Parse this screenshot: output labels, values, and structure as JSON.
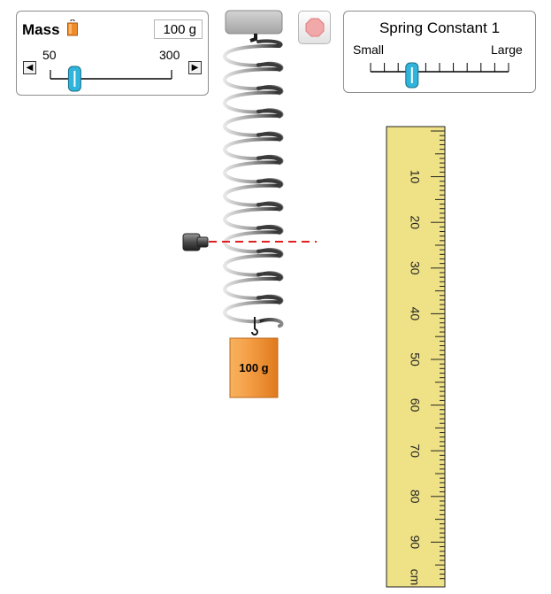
{
  "mass_panel": {
    "title": "Mass",
    "icon": "mass-weight-icon",
    "value": "100 g",
    "min_label": "50",
    "max_label": "300",
    "min": 50,
    "max": 300,
    "current": 100,
    "decrement_icon": "triangle-left-icon",
    "increment_icon": "triangle-right-icon",
    "decrement_glyph": "◀",
    "increment_glyph": "▶"
  },
  "spring_panel": {
    "title": "Spring Constant 1",
    "small_label": "Small",
    "large_label": "Large",
    "level": 0.3
  },
  "stop_button": {
    "icon": "stop-octagon-icon",
    "color": "#f0a8a8"
  },
  "hanging_mass": {
    "label": "100 g",
    "color": "#f08b2c"
  },
  "ruler": {
    "labels": [
      "10",
      "20",
      "30",
      "40",
      "50",
      "60",
      "70",
      "80",
      "90",
      "cm"
    ],
    "background": "#efe186"
  },
  "reference_line": {
    "color": "#e02020",
    "icon": "reference-marker-icon"
  },
  "colors": {
    "slider_thumb": "#2fb4db",
    "panel_border": "#8e8e8e"
  }
}
